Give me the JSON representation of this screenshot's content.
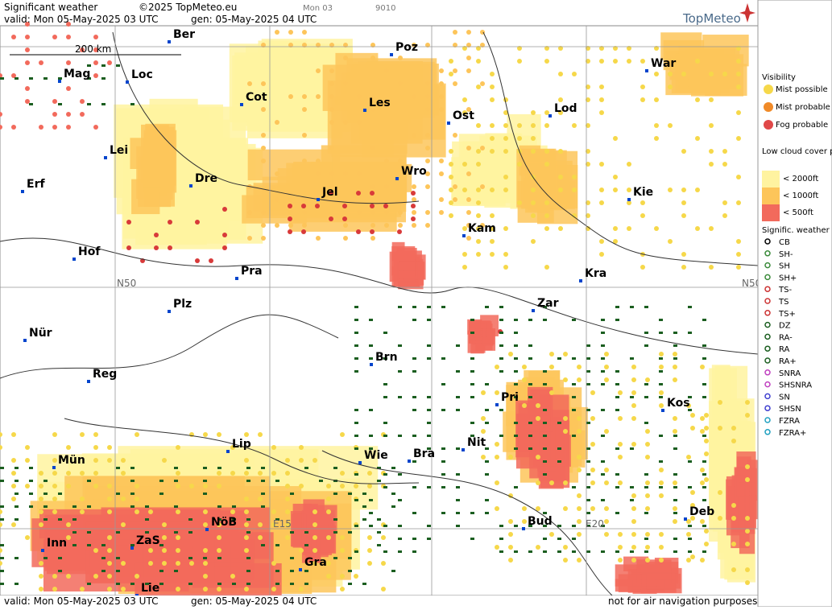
{
  "header": {
    "title": "Significant weather",
    "copyright": "©2025 TopMeteo.eu",
    "run": "Mon 03",
    "code": "9010",
    "valid": "valid:  Mon  05-May-2025  03 UTC",
    "gen": "gen: 05-May-2025 04 UTC",
    "brand": "TopMeteo"
  },
  "map": {
    "scale": "200 km",
    "cities": [
      "Ber",
      "Poz",
      "War",
      "Mag",
      "Loc",
      "Cot",
      "Les",
      "Ost",
      "Lod",
      "Lei",
      "Erf",
      "Dre",
      "Jel",
      "Wro",
      "Kie",
      "Kam",
      "Hof",
      "Pra",
      "Kra",
      "Zar",
      "Plz",
      "Nür",
      "Brn",
      "Reg",
      "Pri",
      "Kos",
      "Lip",
      "Wie",
      "Bra",
      "Nit",
      "Mün",
      "Deb",
      "NöB",
      "Bud",
      "Inn",
      "ZaS",
      "Gra",
      "Lie"
    ],
    "grid_labels": [
      "N50",
      "N50",
      "E15",
      "E20"
    ]
  },
  "footer": {
    "valid": "valid:  Mon  05-May-2025  03 UTC",
    "gen": "gen: 05-May-2025 04 UTC",
    "note": "not for air navigation purposes"
  },
  "legend": {
    "visibility": {
      "title": "Visibility",
      "items": [
        "Mist possible",
        "Mist probable",
        "Fog probable"
      ]
    },
    "low_cloud": {
      "title": "Low cloud cover probable",
      "items": [
        "< 2000ft",
        "< 1000ft",
        "<   500ft"
      ]
    },
    "weather": {
      "title": "Signific. weather",
      "items": [
        "CB",
        "SH-",
        "SH",
        "SH+",
        "TS-",
        "TS",
        "TS+",
        "DZ",
        "RA-",
        "RA",
        "RA+",
        "SNRA",
        "SHSNRA",
        "SN",
        "SHSN",
        "FZRA",
        "FZRA+"
      ]
    }
  }
}
